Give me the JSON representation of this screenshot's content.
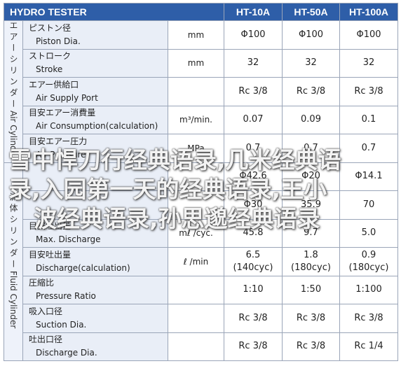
{
  "header": {
    "title": "HYDRO TESTER",
    "models": [
      "HT-10A",
      "HT-50A",
      "HT-100A"
    ]
  },
  "groups": {
    "air": {
      "ja": "エアーシリンダー",
      "en": "Air Cylinder"
    },
    "fluid": {
      "ja": "流体シリンダー",
      "en": "Fluid Cylinder"
    }
  },
  "rows": [
    {
      "ja": "ピストン径",
      "en": "Piston Dia.",
      "unit": "mm",
      "values": [
        "Φ100",
        "Φ100",
        "Φ100"
      ]
    },
    {
      "ja": "ストローク",
      "en": "Stroke",
      "unit": "mm",
      "values": [
        "32",
        "32",
        "32"
      ]
    },
    {
      "ja": "エアー供給口",
      "en": "Air Supply Port",
      "unit": "",
      "values": [
        "Rc 3/8",
        "Rc 3/8",
        "Rc 3/8"
      ]
    },
    {
      "ja": "目安エアー消費量",
      "en": "Air Consumption(calculation)",
      "unit": "m³/min.",
      "values": [
        "0.07",
        "0.09",
        "0.1"
      ]
    },
    {
      "ja": "目安エアー圧力",
      "en": "Air Pressure",
      "unit": "MPa",
      "values": [
        "0.7",
        "0.7",
        "0.7"
      ]
    },
    {
      "ja": "",
      "en": "",
      "unit": "",
      "values": [
        "Φ42.6",
        "Φ20",
        "Φ14.1"
      ]
    },
    {
      "ja": "",
      "en": "",
      "unit": "",
      "values": [
        "Φ30",
        "35.9",
        "70"
      ]
    },
    {
      "ja": "目安吐出量",
      "en": "Max. Discharge",
      "unit": "mℓ /cyc.",
      "values": [
        "45.8",
        "9.7",
        "5.0"
      ]
    },
    {
      "ja": "目安吐出量",
      "en": "Discharge(calculation)",
      "unit": "ℓ /min",
      "values": [
        "6.5\n(140cyc)",
        "1.8\n(180cyc)",
        "0.9\n(180cyc)"
      ]
    },
    {
      "ja": "圧縮比",
      "en": "Pressure Ratio",
      "unit": "",
      "values": [
        "1:10",
        "1:50",
        "1:100"
      ]
    },
    {
      "ja": "吸入口径",
      "en": "Suction Dia.",
      "unit": "",
      "values": [
        "Rc 3/8",
        "Rc 3/8",
        "Rc 3/8"
      ]
    },
    {
      "ja": "吐出口径",
      "en": "Discharge Dia.",
      "unit": "",
      "values": [
        "Rc 3/8",
        "Rc 3/8",
        "Rc 1/4"
      ]
    }
  ],
  "overlay": {
    "line1": "雪中悍刀行经典语录,几米经典语",
    "line2": "录,入园第一天的经典语录,王小",
    "line3": "波经典语录,孙思邈经典语录"
  },
  "colors": {
    "header_bg": "#2e5ea8",
    "label_bg": "#e9eef7",
    "border": "#9aa5b8"
  }
}
